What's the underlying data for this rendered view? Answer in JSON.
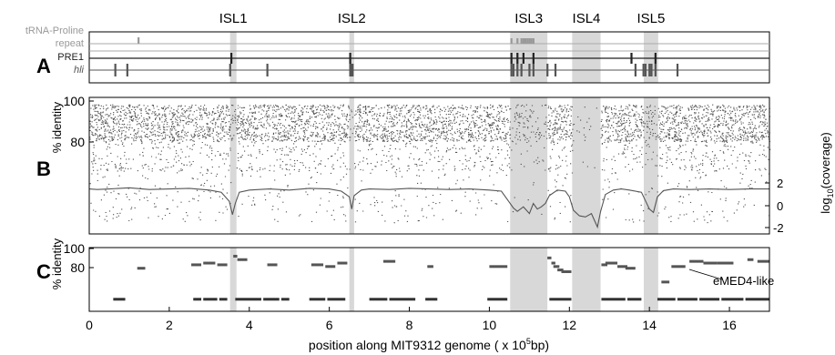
{
  "figure": {
    "islands": [
      {
        "label": "ISL1",
        "start": 3.52,
        "end": 3.68
      },
      {
        "label": "ISL2",
        "start": 6.5,
        "end": 6.62
      },
      {
        "label": "ISL3",
        "start": 10.52,
        "end": 11.45
      },
      {
        "label": "ISL4",
        "start": 12.07,
        "end": 12.78
      },
      {
        "label": "ISL5",
        "start": 13.86,
        "end": 14.22
      }
    ],
    "panel_letters": [
      "A",
      "B",
      "C"
    ],
    "track_labels": {
      "trna": "tRNA-Proline",
      "repeat": "repeat",
      "pre1": "PRE1",
      "hli": "hli"
    },
    "colors": {
      "island_shade": "#d8d8d8",
      "trna": "#999999",
      "repeat": "#999999",
      "pre1": "#222222",
      "hli": "#555555",
      "data": "#555555"
    },
    "axis_B": {
      "ylabel": "% identity",
      "y_ticks": [
        "100",
        "80"
      ],
      "right_label": "log",
      "right_label_sub": "10",
      "right_label_tail": "(coverage)",
      "right_ticks": [
        "2",
        "0",
        "-2"
      ]
    },
    "axis_C": {
      "ylabel": "% identity",
      "y_ticks": [
        "100",
        "80"
      ],
      "annotation": "eMED4-like"
    },
    "x_axis": {
      "ticks": [
        "0",
        "2",
        "4",
        "6",
        "8",
        "10",
        "12",
        "14",
        "16"
      ],
      "label_main": "position along MIT9312 genome ( x 10",
      "label_sup": "5",
      "label_tail": "bp)"
    }
  },
  "chart_data": [
    {
      "type": "scatter",
      "panel": "A",
      "xlim": [
        0,
        17
      ],
      "tracks": {
        "trna": [
          1.23
        ],
        "repeat": [
          10.55,
          10.7,
          10.8,
          10.85,
          10.9,
          10.95,
          11.0,
          11.05,
          11.1
        ],
        "pre1": [
          3.55,
          6.52,
          10.55,
          10.7,
          10.85,
          11.1,
          13.55,
          14.15
        ],
        "hli": [
          0.65,
          0.95,
          3.52,
          4.45,
          6.52,
          6.54,
          6.56,
          6.58,
          10.55,
          10.6,
          10.7,
          10.8,
          11.0,
          11.1,
          11.45,
          11.65,
          13.65,
          13.85,
          13.9,
          14.0,
          14.05,
          14.15,
          14.7
        ]
      }
    },
    {
      "type": "scatter",
      "panel": "B",
      "xlim": [
        0,
        17
      ],
      "ylim": [
        63,
        100
      ],
      "y_ticks": [
        100,
        80
      ],
      "right_ylim": [
        -2,
        2
      ],
      "right_ticks": [
        2,
        0,
        -2
      ],
      "coverage_profile": {
        "x": [
          0,
          0.2,
          0.5,
          1,
          1.5,
          2,
          2.5,
          3,
          3.3,
          3.5,
          3.58,
          3.65,
          3.75,
          4,
          4.5,
          5,
          5.5,
          6,
          6.3,
          6.5,
          6.56,
          6.62,
          6.8,
          7,
          7.5,
          8,
          8.5,
          9,
          9.5,
          10,
          10.3,
          10.5,
          10.6,
          10.7,
          10.85,
          11.0,
          11.1,
          11.2,
          11.3,
          11.4,
          11.5,
          11.7,
          11.9,
          12.0,
          12.1,
          12.25,
          12.4,
          12.55,
          12.7,
          12.78,
          12.9,
          13.1,
          13.3,
          13.5,
          13.8,
          14.0,
          14.1,
          14.2,
          14.35,
          14.6,
          15,
          15.5,
          16,
          16.5,
          17
        ],
        "y": [
          1.5,
          1.45,
          1.5,
          1.6,
          1.45,
          1.5,
          1.55,
          1.4,
          1.2,
          0.4,
          -0.8,
          0.2,
          1.2,
          1.4,
          1.5,
          1.4,
          1.55,
          1.5,
          1.3,
          0.8,
          -0.3,
          0.9,
          1.4,
          1.5,
          1.45,
          1.55,
          1.5,
          1.45,
          1.5,
          1.4,
          1.3,
          0.3,
          -0.2,
          -0.5,
          -0.1,
          -0.7,
          0.2,
          -0.3,
          -0.1,
          0.2,
          0.9,
          1.4,
          1.3,
          0.8,
          -0.4,
          -0.9,
          -1.0,
          -0.7,
          -1.9,
          -0.5,
          1.0,
          1.4,
          1.5,
          1.4,
          1.2,
          -0.3,
          -0.6,
          0.8,
          1.35,
          1.5,
          1.45,
          1.5,
          1.45,
          1.5,
          1.5
        ]
      }
    },
    {
      "type": "scatter",
      "panel": "C",
      "xlim": [
        0,
        17
      ],
      "ylim": [
        63,
        100
      ],
      "y_ticks": [
        100,
        80
      ],
      "segments": [
        {
          "x0": 1.2,
          "x1": 1.4,
          "y": 88
        },
        {
          "x0": 2.55,
          "x1": 2.8,
          "y": 90
        },
        {
          "x0": 2.85,
          "x1": 3.15,
          "y": 91
        },
        {
          "x0": 3.2,
          "x1": 3.45,
          "y": 90
        },
        {
          "x0": 3.6,
          "x1": 3.7,
          "y": 95
        },
        {
          "x0": 3.7,
          "x1": 3.95,
          "y": 93
        },
        {
          "x0": 4.45,
          "x1": 4.7,
          "y": 90
        },
        {
          "x0": 5.55,
          "x1": 5.85,
          "y": 90
        },
        {
          "x0": 5.9,
          "x1": 6.15,
          "y": 89
        },
        {
          "x0": 6.2,
          "x1": 6.45,
          "y": 91
        },
        {
          "x0": 7.35,
          "x1": 7.65,
          "y": 92
        },
        {
          "x0": 8.45,
          "x1": 8.6,
          "y": 89
        },
        {
          "x0": 10.0,
          "x1": 10.45,
          "y": 89
        },
        {
          "x0": 11.45,
          "x1": 11.55,
          "y": 94
        },
        {
          "x0": 11.55,
          "x1": 11.65,
          "y": 91
        },
        {
          "x0": 11.6,
          "x1": 11.75,
          "y": 89
        },
        {
          "x0": 11.7,
          "x1": 11.85,
          "y": 87
        },
        {
          "x0": 11.8,
          "x1": 12.05,
          "y": 86
        },
        {
          "x0": 12.8,
          "x1": 12.95,
          "y": 90
        },
        {
          "x0": 12.9,
          "x1": 13.2,
          "y": 91
        },
        {
          "x0": 13.2,
          "x1": 13.45,
          "y": 89
        },
        {
          "x0": 13.4,
          "x1": 13.65,
          "y": 88
        },
        {
          "x0": 14.3,
          "x1": 14.5,
          "y": 80
        },
        {
          "x0": 14.55,
          "x1": 14.9,
          "y": 89
        },
        {
          "x0": 15.0,
          "x1": 15.35,
          "y": 92
        },
        {
          "x0": 15.35,
          "x1": 15.7,
          "y": 91
        },
        {
          "x0": 15.7,
          "x1": 16.1,
          "y": 91
        },
        {
          "x0": 16.45,
          "x1": 16.6,
          "y": 93
        },
        {
          "x0": 16.7,
          "x1": 17.0,
          "y": 92
        }
      ],
      "baseline_segments": {
        "y": 70,
        "ranges": [
          [
            0.6,
            0.9
          ],
          [
            2.6,
            2.8
          ],
          [
            2.85,
            3.2
          ],
          [
            3.25,
            3.45
          ],
          [
            3.65,
            4.3
          ],
          [
            4.35,
            4.75
          ],
          [
            4.8,
            5.0
          ],
          [
            5.5,
            5.9
          ],
          [
            5.95,
            6.4
          ],
          [
            7.0,
            7.45
          ],
          [
            7.5,
            8.15
          ],
          [
            8.4,
            8.7
          ],
          [
            9.95,
            10.45
          ],
          [
            11.5,
            12.05
          ],
          [
            12.8,
            13.4
          ],
          [
            13.45,
            13.8
          ],
          [
            14.2,
            14.65
          ],
          [
            14.7,
            15.2
          ],
          [
            15.25,
            15.75
          ],
          [
            15.8,
            16.35
          ],
          [
            16.4,
            17.0
          ]
        ]
      }
    }
  ]
}
